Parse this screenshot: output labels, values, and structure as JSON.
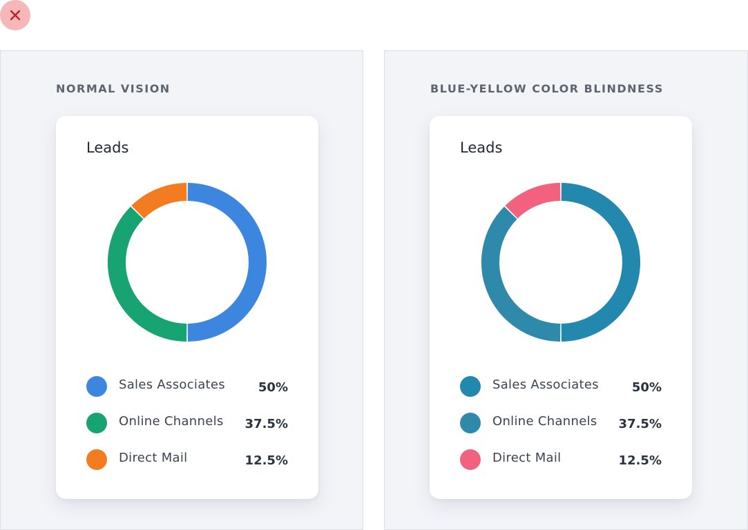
{
  "close_icon": "close-icon",
  "colors": {
    "close_bg": "#f7b6b8",
    "close_x": "#b4232e",
    "panel_bg": "#f3f4f8"
  },
  "panels": [
    {
      "heading": "NORMAL VISION",
      "card_title": "Leads"
    },
    {
      "heading": "BLUE-YELLOW COLOR BLINDNESS",
      "card_title": "Leads"
    }
  ],
  "chart_data": [
    {
      "type": "pie",
      "subtype": "donut",
      "title": "Leads",
      "categories": [
        "Sales Associates",
        "Online Channels",
        "Direct Mail"
      ],
      "values": [
        50,
        37.5,
        12.5
      ],
      "value_labels": [
        "50%",
        "37.5%",
        "12.5%"
      ],
      "colors": [
        "#3d86e0",
        "#17a372",
        "#f27c1f"
      ],
      "legend": "bottom"
    },
    {
      "type": "pie",
      "subtype": "donut",
      "title": "Leads",
      "categories": [
        "Sales Associates",
        "Online Channels",
        "Direct Mail"
      ],
      "values": [
        50,
        37.5,
        12.5
      ],
      "value_labels": [
        "50%",
        "37.5%",
        "12.5%"
      ],
      "colors": [
        "#2388ae",
        "#2f89ab",
        "#f2627e"
      ],
      "legend": "bottom"
    }
  ]
}
